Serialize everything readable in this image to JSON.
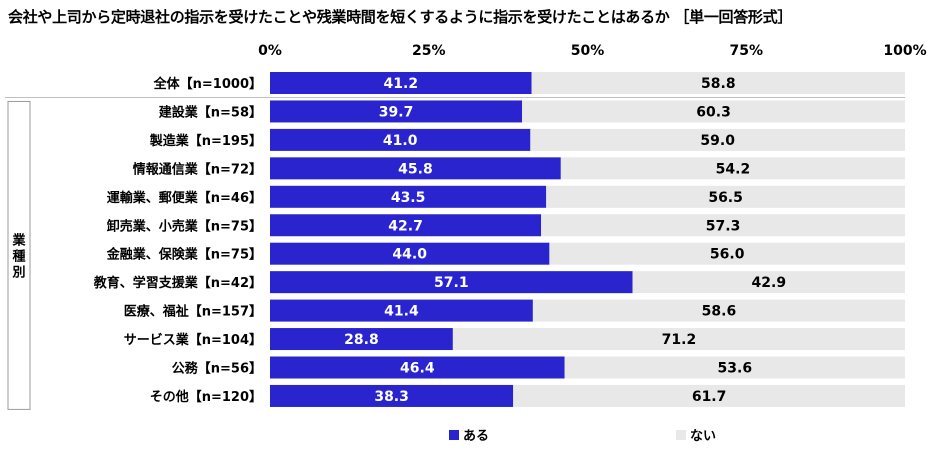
{
  "title": "会社や上司から定時退社の指示を受けたことや残業時間を短くするように指示を受けたことはあるか ［単一回答形式］",
  "group_label": "業種別",
  "colors": {
    "yes": "#2a24cf",
    "no": "#e8e8e8",
    "gridline": "#bfbfbf"
  },
  "chart_data": {
    "type": "bar",
    "orientation": "horizontal",
    "stacked": true,
    "percent": true,
    "xlim": [
      0,
      100
    ],
    "x_ticks": [
      "0%",
      "25%",
      "50%",
      "75%",
      "100%"
    ],
    "legend_position": "bottom",
    "categories": [
      "全体【n=1000】",
      "建設業【n=58】",
      "製造業【n=195】",
      "情報通信業【n=72】",
      "運輸業、郵便業【n=46】",
      "卸売業、小売業【n=75】",
      "金融業、保険業【n=75】",
      "教育、学習支援業【n=42】",
      "医療、福祉【n=157】",
      "サービス業【n=104】",
      "公務【n=56】",
      "その他【n=120】"
    ],
    "series": [
      {
        "name": "ある",
        "values": [
          41.2,
          39.7,
          41.0,
          45.8,
          43.5,
          42.7,
          44.0,
          57.1,
          41.4,
          28.8,
          46.4,
          38.3
        ]
      },
      {
        "name": "ない",
        "values": [
          58.8,
          60.3,
          59.0,
          54.2,
          56.5,
          57.3,
          56.0,
          42.9,
          58.6,
          71.2,
          53.6,
          61.7
        ]
      }
    ]
  }
}
